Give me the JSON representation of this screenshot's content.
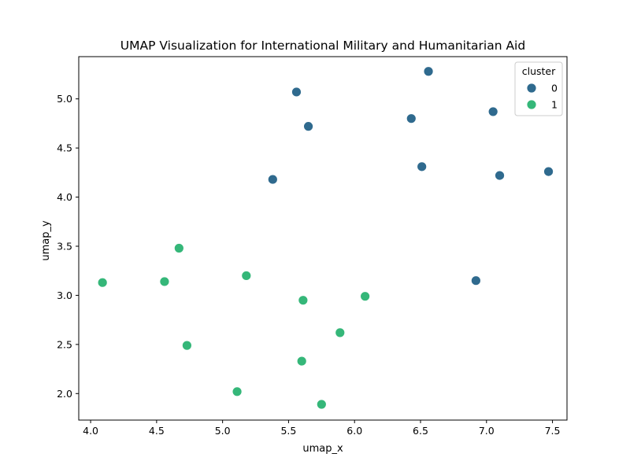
{
  "chart_data": {
    "type": "scatter",
    "title": "UMAP Visualization for International Military and Humanitarian Aid",
    "xlabel": "umap_x",
    "ylabel": "umap_y",
    "xlim": [
      3.91,
      7.61
    ],
    "ylim": [
      1.73,
      5.43
    ],
    "xticks": [
      4.0,
      4.5,
      5.0,
      5.5,
      6.0,
      6.5,
      7.0,
      7.5
    ],
    "yticks": [
      2.0,
      2.5,
      3.0,
      3.5,
      4.0,
      4.5,
      5.0
    ],
    "xtick_labels": [
      "4.0",
      "4.5",
      "5.0",
      "5.5",
      "6.0",
      "6.5",
      "7.0",
      "7.5"
    ],
    "ytick_labels": [
      "2.0",
      "2.5",
      "3.0",
      "3.5",
      "4.0",
      "4.5",
      "5.0"
    ],
    "grid": false,
    "legend": {
      "title": "cluster",
      "position": "top-right",
      "entries": [
        {
          "label": "0",
          "color": "#2f6a8e"
        },
        {
          "label": "1",
          "color": "#35b779"
        }
      ]
    },
    "series": [
      {
        "name": "0",
        "color": "#2f6a8e",
        "points": [
          {
            "x": 6.56,
            "y": 5.28
          },
          {
            "x": 5.56,
            "y": 5.07
          },
          {
            "x": 7.05,
            "y": 4.87
          },
          {
            "x": 6.43,
            "y": 4.8
          },
          {
            "x": 5.65,
            "y": 4.72
          },
          {
            "x": 6.51,
            "y": 4.31
          },
          {
            "x": 7.1,
            "y": 4.22
          },
          {
            "x": 7.47,
            "y": 4.26
          },
          {
            "x": 5.38,
            "y": 4.18
          },
          {
            "x": 6.92,
            "y": 3.15
          }
        ]
      },
      {
        "name": "1",
        "color": "#35b779",
        "points": [
          {
            "x": 4.67,
            "y": 3.48
          },
          {
            "x": 4.09,
            "y": 3.13
          },
          {
            "x": 4.56,
            "y": 3.14
          },
          {
            "x": 5.18,
            "y": 3.2
          },
          {
            "x": 5.61,
            "y": 2.95
          },
          {
            "x": 6.08,
            "y": 2.99
          },
          {
            "x": 5.89,
            "y": 2.62
          },
          {
            "x": 4.73,
            "y": 2.49
          },
          {
            "x": 5.6,
            "y": 2.33
          },
          {
            "x": 5.11,
            "y": 2.02
          },
          {
            "x": 5.75,
            "y": 1.89
          }
        ]
      }
    ]
  }
}
